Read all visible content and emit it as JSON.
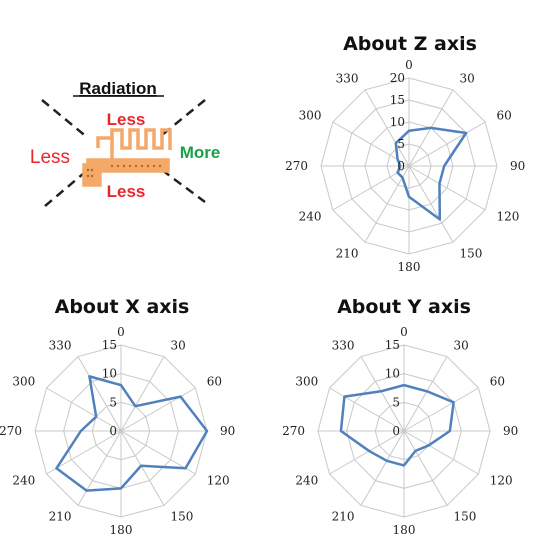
{
  "inset": {
    "title": "Radiation",
    "top_label": "Less",
    "bottom_label": "Less",
    "left_label": "Less",
    "right_label": "More",
    "colors": {
      "less": "#e8262b",
      "more": "#19a14a",
      "antenna": "#f4a968",
      "dash": "#222222"
    }
  },
  "chart_data": [
    {
      "type": "radar",
      "title": "About Z axis",
      "angles": [
        "0",
        "30",
        "60",
        "90",
        "120",
        "150",
        "180",
        "210",
        "240",
        "270",
        "300",
        "330"
      ],
      "radial_ticks": [
        "0",
        "5",
        "10",
        "15",
        "20"
      ],
      "rlim": [
        0,
        20
      ],
      "series": [
        {
          "values": [
            8,
            10,
            15,
            8,
            8,
            14,
            7,
            3,
            3,
            2,
            3,
            6
          ]
        }
      ],
      "color": "#4f81bd",
      "grid": true
    },
    {
      "type": "radar",
      "title": "About X axis",
      "angles": [
        "0",
        "30",
        "60",
        "90",
        "120",
        "150",
        "180",
        "210",
        "240",
        "270",
        "300",
        "330"
      ],
      "radial_ticks": [
        "0",
        "5",
        "10",
        "15"
      ],
      "rlim": [
        0,
        15
      ],
      "series": [
        {
          "values": [
            8,
            5,
            12,
            15,
            13,
            7,
            10,
            12,
            13,
            7,
            5,
            11
          ]
        }
      ],
      "color": "#4f81bd",
      "grid": true
    },
    {
      "type": "radar",
      "title": "About Y axis",
      "angles": [
        "0",
        "30",
        "60",
        "90",
        "120",
        "150",
        "180",
        "210",
        "240",
        "270",
        "300",
        "330"
      ],
      "radial_ticks": [
        "0",
        "5",
        "10",
        "15"
      ],
      "rlim": [
        0,
        15
      ],
      "series": [
        {
          "values": [
            8,
            8,
            10,
            8,
            5,
            4,
            6,
            6,
            7,
            11,
            12,
            8
          ]
        }
      ],
      "color": "#4f81bd",
      "grid": true
    }
  ]
}
